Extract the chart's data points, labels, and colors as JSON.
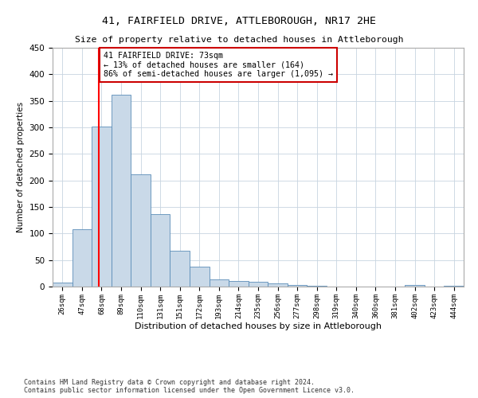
{
  "title1": "41, FAIRFIELD DRIVE, ATTLEBOROUGH, NR17 2HE",
  "title2": "Size of property relative to detached houses in Attleborough",
  "xlabel": "Distribution of detached houses by size in Attleborough",
  "ylabel": "Number of detached properties",
  "footnote": "Contains HM Land Registry data © Crown copyright and database right 2024.\nContains public sector information licensed under the Open Government Licence v3.0.",
  "bin_labels": [
    "26sqm",
    "47sqm",
    "68sqm",
    "89sqm",
    "110sqm",
    "131sqm",
    "151sqm",
    "172sqm",
    "193sqm",
    "214sqm",
    "235sqm",
    "256sqm",
    "277sqm",
    "298sqm",
    "319sqm",
    "340sqm",
    "360sqm",
    "381sqm",
    "402sqm",
    "423sqm",
    "444sqm"
  ],
  "bar_heights": [
    8,
    108,
    301,
    362,
    212,
    136,
    68,
    38,
    13,
    10,
    9,
    6,
    3,
    2,
    0,
    0,
    0,
    0,
    3,
    0,
    2
  ],
  "bar_color": "#c9d9e8",
  "bar_edge_color": "#5b8db8",
  "red_line_x": 1.87,
  "annotation_text": "41 FAIRFIELD DRIVE: 73sqm\n← 13% of detached houses are smaller (164)\n86% of semi-detached houses are larger (1,095) →",
  "annotation_box_color": "#ffffff",
  "annotation_box_edge": "#cc0000",
  "ylim": [
    0,
    450
  ],
  "yticks": [
    0,
    50,
    100,
    150,
    200,
    250,
    300,
    350,
    400,
    450
  ],
  "background_color": "#ffffff",
  "grid_color": "#c8d4e0"
}
